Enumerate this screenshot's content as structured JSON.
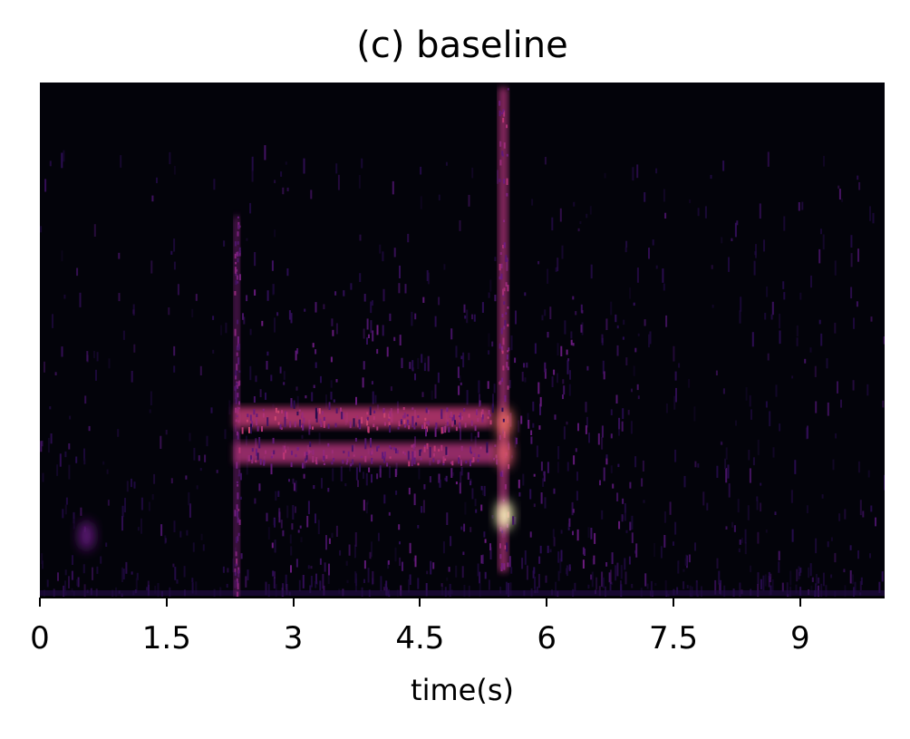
{
  "chart_data": {
    "type": "heatmap",
    "title": "(c) baseline",
    "xlabel": "time(s)",
    "ylabel": "",
    "xlim": [
      0,
      10
    ],
    "x_ticks": [
      {
        "value": 0,
        "label": "0"
      },
      {
        "value": 1.5,
        "label": "1.5"
      },
      {
        "value": 3,
        "label": "3"
      },
      {
        "value": 4.5,
        "label": "4.5"
      },
      {
        "value": 6,
        "label": "6"
      },
      {
        "value": 7.5,
        "label": "7.5"
      },
      {
        "value": 9,
        "label": "9"
      }
    ],
    "y_ticks_shown": false,
    "colormap": "magma",
    "background_color": "#03030a",
    "features": [
      {
        "kind": "vertical-band",
        "t_start": 2.3,
        "t_end": 2.36,
        "f_low": 0.0,
        "f_high": 0.74,
        "intensity": 0.45
      },
      {
        "kind": "vertical-band",
        "t_start": 5.43,
        "t_end": 5.54,
        "f_low": 0.05,
        "f_high": 0.99,
        "intensity": 0.55
      },
      {
        "kind": "horizontal-band",
        "t_start": 2.3,
        "t_end": 5.35,
        "f_low": 0.33,
        "f_high": 0.37,
        "intensity": 0.6
      },
      {
        "kind": "horizontal-band",
        "t_start": 2.3,
        "t_end": 5.4,
        "f_low": 0.26,
        "f_high": 0.3,
        "intensity": 0.55
      },
      {
        "kind": "hotspot",
        "t": 5.5,
        "f": 0.16,
        "intensity": 1.0
      },
      {
        "kind": "hotspot",
        "t": 5.5,
        "f": 0.34,
        "intensity": 0.75
      },
      {
        "kind": "hotspot",
        "t": 5.5,
        "f": 0.28,
        "intensity": 0.7
      },
      {
        "kind": "hotspot",
        "t": 0.55,
        "f": 0.12,
        "intensity": 0.35
      }
    ]
  }
}
